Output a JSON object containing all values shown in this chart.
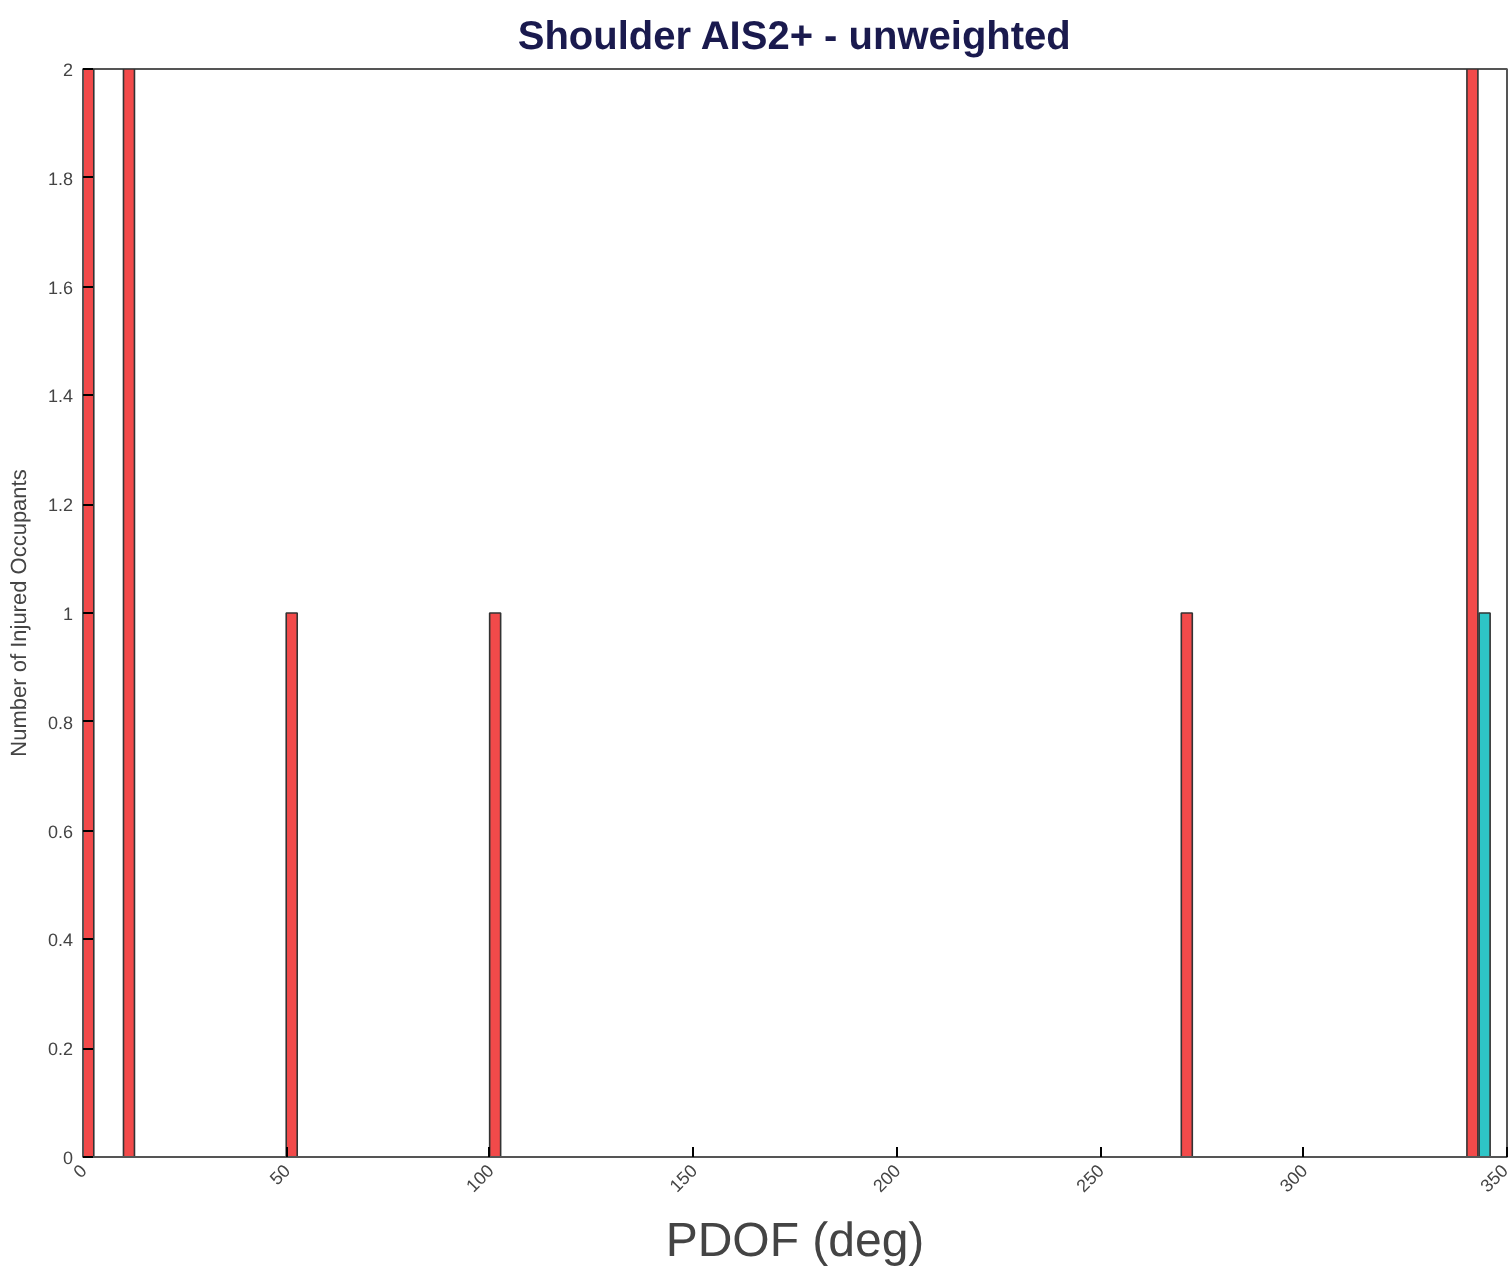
{
  "chart_data": {
    "type": "bar",
    "title": "Shoulder AIS2+ - unweighted",
    "xlabel": "PDOF (deg)",
    "ylabel": "Number of Injured Occupants",
    "series": [
      {
        "color": "#f24a4a",
        "x": [
          1.3,
          11.3,
          51.3,
          101.3,
          271.3,
          341.5
        ],
        "values": [
          2,
          2,
          1,
          1,
          1,
          2
        ]
      },
      {
        "color": "#2ec4c6",
        "x": [
          344.5
        ],
        "values": [
          1
        ]
      }
    ],
    "xlim": [
      0,
      350
    ],
    "xticks": [
      0,
      50,
      100,
      150,
      200,
      250,
      300,
      350
    ],
    "ylim": [
      0,
      2
    ],
    "yticks": [
      0,
      0.2,
      0.4,
      0.6,
      0.8,
      1,
      1.2,
      1.4,
      1.6,
      1.8,
      2
    ]
  }
}
